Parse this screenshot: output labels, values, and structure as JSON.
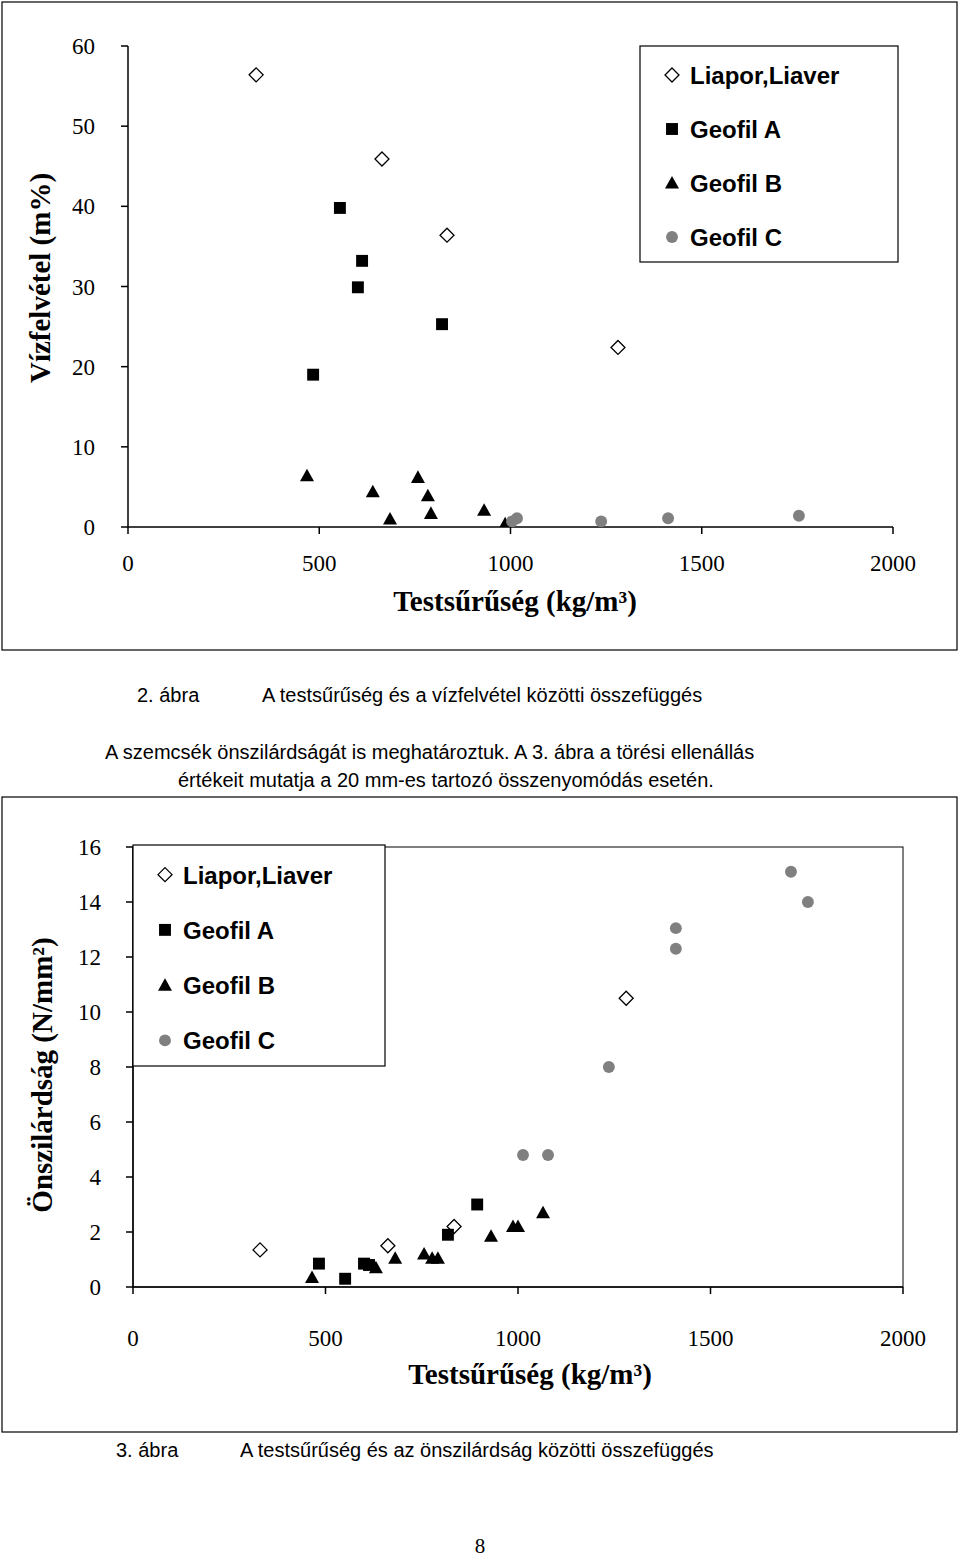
{
  "chart_data": [
    {
      "type": "scatter",
      "caption_label": "2. ábra",
      "title": "A testsűrűség és a vízfelvétel közötti összefüggés",
      "x_label": "Testsűrűség (kg/m³)",
      "y_label": "Vízfelvétel (m%)",
      "xlim": [
        0,
        2000
      ],
      "xticks": [
        0,
        500,
        1000,
        1500,
        2000
      ],
      "ylim": [
        0,
        60
      ],
      "yticks": [
        0,
        10,
        20,
        30,
        40,
        50,
        60
      ],
      "grid": false,
      "legend": "upper right",
      "series": [
        {
          "name": "Liapor,Liaver",
          "color": "#000000",
          "marker": "diamond-open",
          "x": [
            335,
            664,
            834,
            1281
          ],
          "values": [
            56.4,
            45.9,
            36.4,
            22.4
          ]
        },
        {
          "name": "Geofil A",
          "color": "#000000",
          "marker": "square",
          "x": [
            554,
            612,
            601,
            821,
            484
          ],
          "values": [
            39.8,
            33.2,
            29.9,
            25.3,
            19.0
          ]
        },
        {
          "name": "Geofil B",
          "color": "#000000",
          "marker": "triangle",
          "x": [
            468,
            640,
            685,
            758,
            784,
            792,
            931,
            986
          ],
          "values": [
            6.4,
            4.4,
            1.0,
            6.2,
            3.9,
            1.7,
            2.1,
            0.4
          ]
        },
        {
          "name": "Geofil C",
          "color": "#808080",
          "marker": "circle",
          "x": [
            1004,
            1017,
            1237,
            1412,
            1754
          ],
          "values": [
            0.7,
            1.1,
            0.7,
            1.1,
            1.4
          ]
        }
      ]
    },
    {
      "type": "scatter",
      "caption_label": "3. ábra",
      "title": "A testsűrűség és az önszilárdság közötti összefüggés",
      "x_label": "Testsűrűség (kg/m³)",
      "y_label": "Önszilárdság (N/mm²)",
      "xlim": [
        0,
        2000
      ],
      "xticks": [
        0,
        500,
        1000,
        1500,
        2000
      ],
      "ylim": [
        0,
        16
      ],
      "yticks": [
        0,
        2,
        4,
        6,
        8,
        10,
        12,
        14,
        16
      ],
      "grid": false,
      "legend": "upper left",
      "series": [
        {
          "name": "Liapor,Liaver",
          "color": "#000000",
          "marker": "diamond-open",
          "x": [
            330,
            662,
            834,
            1281
          ],
          "values": [
            1.35,
            1.5,
            2.2,
            10.5
          ]
        },
        {
          "name": "Geofil A",
          "color": "#000000",
          "marker": "square",
          "x": [
            483,
            551,
            600,
            613,
            818,
            894
          ],
          "values": [
            0.85,
            0.3,
            0.85,
            0.8,
            1.9,
            3.0
          ]
        },
        {
          "name": "Geofil B",
          "color": "#000000",
          "marker": "triangle",
          "x": [
            465,
            631,
            681,
            756,
            777,
            792,
            930,
            987,
            1000,
            1065
          ],
          "values": [
            0.35,
            0.7,
            1.05,
            1.2,
            1.05,
            1.05,
            1.85,
            2.2,
            2.2,
            2.7
          ]
        },
        {
          "name": "Geofil C",
          "color": "#808080",
          "marker": "circle",
          "x": [
            1013,
            1078,
            1236,
            1410,
            1410,
            1709,
            1753
          ],
          "values": [
            4.8,
            4.8,
            8.0,
            13.05,
            12.3,
            15.1,
            14.0
          ]
        }
      ]
    }
  ],
  "text": {
    "paragraph": [
      "A szemcsék önszilárdságát is meghatároztuk. A 3. ábra a törési ellenállás",
      "értékeit mutatja a 20 mm-es tartozó összenyomódás esetén."
    ],
    "page_number": "8"
  }
}
